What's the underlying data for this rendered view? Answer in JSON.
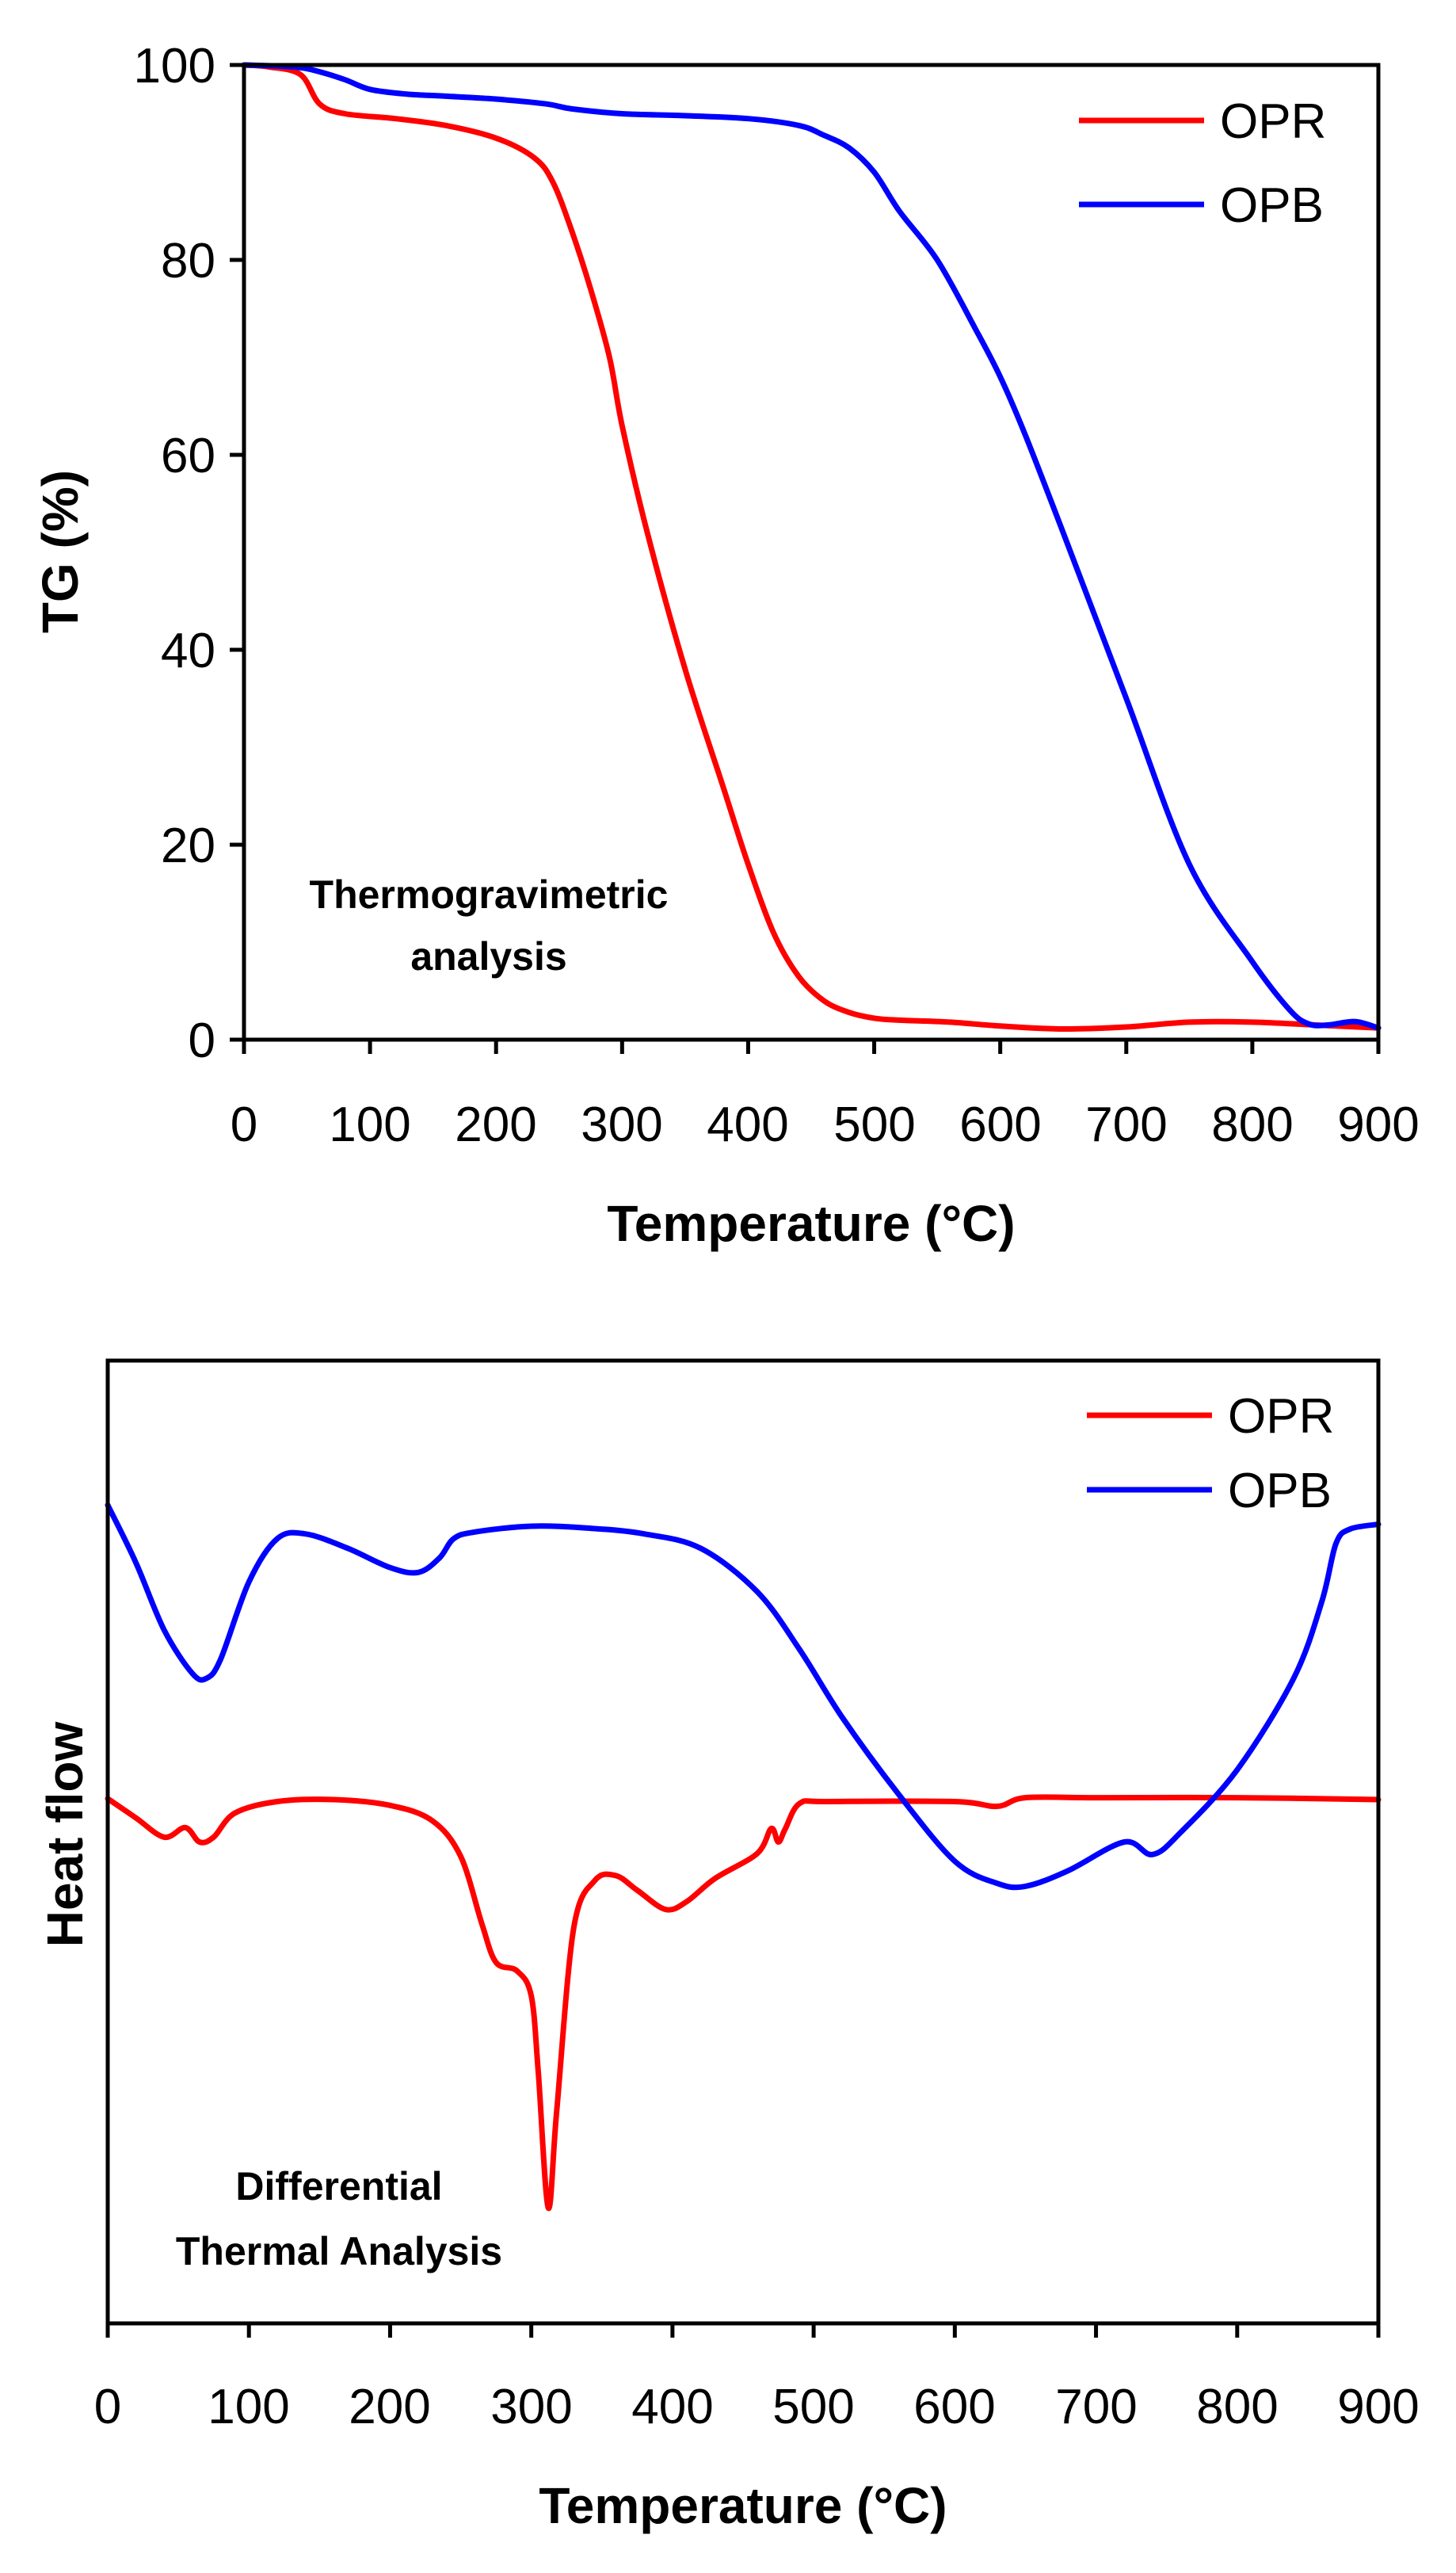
{
  "colors": {
    "OPR": "#ff0000",
    "OPB": "#0000ff",
    "axis": "#000000"
  },
  "chart_data": [
    {
      "type": "line",
      "title": "",
      "annotation": [
        "Thermogravimetric",
        "analysis"
      ],
      "xlabel": "Temperature (°C)",
      "ylabel": "TG (%)",
      "xlim": [
        0,
        900
      ],
      "ylim": [
        0,
        100
      ],
      "xticks": [
        0,
        100,
        200,
        300,
        400,
        500,
        600,
        700,
        800,
        900
      ],
      "xtick_labels": [
        "0",
        "100",
        "200",
        "300",
        "400",
        "500",
        "600",
        "700",
        "800",
        "900"
      ],
      "yticks": [
        0,
        20,
        40,
        60,
        80,
        100
      ],
      "ytick_labels": [
        "0",
        "20",
        "40",
        "60",
        "80",
        "100"
      ],
      "legend": {
        "position": "top-right",
        "entries": [
          "OPR",
          "OPB"
        ]
      },
      "grid": false,
      "series": [
        {
          "name": "OPR",
          "x": [
            0,
            20,
            45,
            60,
            80,
            120,
            160,
            200,
            230,
            245,
            260,
            275,
            290,
            300,
            320,
            350,
            380,
            400,
            420,
            440,
            460,
            480,
            500,
            520,
            560,
            600,
            650,
            700,
            750,
            800,
            850,
            900
          ],
          "y": [
            100,
            99.8,
            99,
            96,
            95,
            94.5,
            93.8,
            92.5,
            90.5,
            88,
            83,
            77,
            70,
            63,
            52,
            38,
            26,
            18,
            11,
            6.5,
            4,
            2.8,
            2.2,
            2,
            1.8,
            1.4,
            1.1,
            1.3,
            1.8,
            1.8,
            1.5,
            1.2
          ]
        },
        {
          "name": "OPB",
          "x": [
            0,
            40,
            60,
            80,
            100,
            130,
            160,
            200,
            240,
            260,
            300,
            350,
            400,
            440,
            460,
            480,
            500,
            520,
            550,
            580,
            600,
            620,
            650,
            700,
            750,
            800,
            830,
            845,
            860,
            875,
            885,
            900
          ],
          "y": [
            100,
            99.8,
            99.3,
            98.5,
            97.5,
            97,
            96.8,
            96.5,
            96,
            95.5,
            95,
            94.8,
            94.5,
            93.8,
            92.8,
            91.5,
            89,
            85,
            80,
            73,
            68,
            62,
            52,
            35,
            18,
            8,
            3,
            1.6,
            1.5,
            1.8,
            1.8,
            1.2
          ]
        }
      ]
    },
    {
      "type": "line",
      "title": "",
      "annotation": [
        "Differential",
        "Thermal Analysis"
      ],
      "xlabel": "Temperature (°C)",
      "ylabel": "Heat flow",
      "xlim": [
        0,
        900
      ],
      "ylim": [
        0,
        100
      ],
      "y_units": "arbitrary (no y tick labels shown)",
      "xticks": [
        0,
        100,
        200,
        300,
        400,
        500,
        600,
        700,
        800,
        900
      ],
      "xtick_labels": [
        "0",
        "100",
        "200",
        "300",
        "400",
        "500",
        "600",
        "700",
        "800",
        "900"
      ],
      "legend": {
        "position": "top-right",
        "entries": [
          "OPR",
          "OPB"
        ]
      },
      "grid": false,
      "series": [
        {
          "name": "OPR",
          "x": [
            0,
            20,
            40,
            55,
            65,
            75,
            90,
            120,
            160,
            200,
            230,
            250,
            265,
            275,
            290,
            300,
            305,
            312,
            318,
            330,
            345,
            360,
            375,
            395,
            410,
            430,
            460,
            470,
            475,
            480,
            490,
            510,
            600,
            630,
            650,
            700,
            800,
            900
          ],
          "y": [
            54.5,
            52.5,
            50.5,
            51.5,
            50,
            50.5,
            53,
            54.2,
            54.4,
            53.8,
            52.2,
            48.5,
            41.5,
            37.5,
            36.6,
            34,
            26,
            12,
            22,
            41,
            46,
            46.5,
            45,
            43,
            43.8,
            46.2,
            48.8,
            51.4,
            50,
            51.4,
            54,
            54.2,
            54.2,
            53.7,
            54.6,
            54.6,
            54.6,
            54.4
          ]
        },
        {
          "name": "OPB",
          "x": [
            0,
            20,
            40,
            60,
            70,
            80,
            100,
            120,
            140,
            170,
            200,
            220,
            235,
            245,
            260,
            300,
            340,
            380,
            420,
            460,
            490,
            520,
            560,
            600,
            630,
            650,
            680,
            720,
            740,
            760,
            800,
            840,
            860,
            870,
            880,
            900
          ],
          "y": [
            85,
            79,
            72,
            67.5,
            67,
            69,
            77,
            81.5,
            82,
            80.5,
            78.5,
            78,
            79.5,
            81.5,
            82.2,
            82.8,
            82.6,
            82,
            80.5,
            76,
            70,
            63,
            55,
            48,
            45.7,
            45.4,
            47,
            50,
            48.7,
            51,
            57.5,
            67,
            75,
            81,
            82.5,
            83
          ]
        }
      ]
    }
  ]
}
